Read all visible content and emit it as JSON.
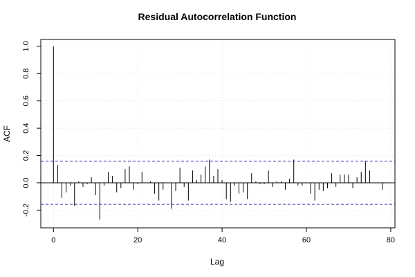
{
  "chart_data": {
    "type": "bar",
    "title": "Residual Autocorrelation Function",
    "xlabel": "Lag",
    "ylabel": "ACF",
    "xlim": [
      -3,
      81
    ],
    "ylim": [
      -0.33,
      1.05
    ],
    "x_ticks": [
      "0",
      "20",
      "40",
      "60",
      "80"
    ],
    "y_ticks": [
      "-0.2",
      "0.0",
      "0.2",
      "0.4",
      "0.6",
      "0.8",
      "1.0"
    ],
    "grid": true,
    "confidence_band": [
      0.158,
      -0.158
    ],
    "lags": [
      0,
      1,
      2,
      3,
      4,
      5,
      6,
      7,
      8,
      9,
      10,
      11,
      12,
      13,
      14,
      15,
      16,
      17,
      18,
      19,
      20,
      21,
      22,
      23,
      24,
      25,
      26,
      27,
      28,
      29,
      30,
      31,
      32,
      33,
      34,
      35,
      36,
      37,
      38,
      39,
      40,
      41,
      42,
      43,
      44,
      45,
      46,
      47,
      48,
      49,
      50,
      51,
      52,
      53,
      54,
      55,
      56,
      57,
      58,
      59,
      60,
      61,
      62,
      63,
      64,
      65,
      66,
      67,
      68,
      69,
      70,
      71,
      72,
      73,
      74,
      75,
      76,
      77,
      78
    ],
    "values": [
      1.0,
      0.13,
      -0.11,
      -0.07,
      -0.02,
      -0.17,
      0.01,
      -0.03,
      -0.01,
      0.04,
      -0.09,
      -0.27,
      -0.02,
      0.08,
      0.05,
      -0.07,
      -0.04,
      0.1,
      0.12,
      -0.05,
      -0.01,
      0.08,
      0.0,
      0.01,
      -0.08,
      -0.13,
      -0.05,
      0.0,
      -0.19,
      -0.06,
      0.11,
      -0.03,
      -0.13,
      0.09,
      0.02,
      0.06,
      0.12,
      0.17,
      0.05,
      0.1,
      0.02,
      -0.12,
      -0.14,
      -0.02,
      -0.08,
      -0.07,
      -0.12,
      0.07,
      0.01,
      -0.01,
      -0.01,
      0.09,
      -0.03,
      0.01,
      0.01,
      -0.05,
      0.03,
      0.17,
      -0.02,
      -0.02,
      0.0,
      -0.08,
      -0.13,
      -0.05,
      -0.06,
      -0.04,
      0.07,
      -0.03,
      0.06,
      0.06,
      0.06,
      -0.04,
      0.04,
      0.08,
      0.16,
      0.09,
      0.0,
      0.0,
      -0.05
    ]
  }
}
